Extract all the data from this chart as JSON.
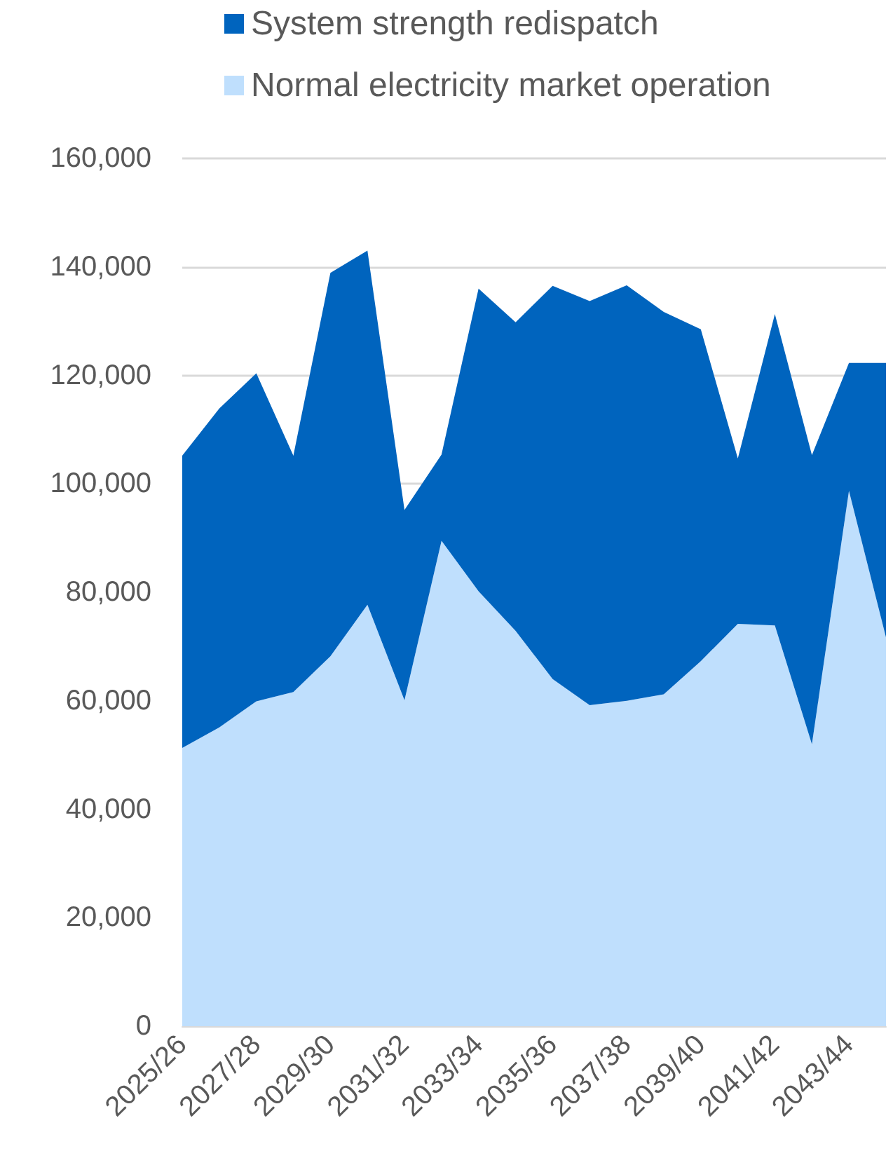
{
  "chart_data": {
    "type": "area",
    "stacked": true,
    "categories": [
      "2025/26",
      null,
      "2027/28",
      null,
      "2029/30",
      null,
      "2031/32",
      null,
      "2033/34",
      null,
      "2035/36",
      null,
      "2037/38",
      null,
      "2039/40",
      null,
      "2041/42",
      null,
      "2043/44",
      null
    ],
    "series": [
      {
        "name": "Normal electricity market operation",
        "color": "#bfdffd",
        "values": [
          51300,
          55100,
          59900,
          61600,
          68200,
          77700,
          60100,
          89500,
          80200,
          72900,
          64000,
          59200,
          60000,
          61200,
          67300,
          74200,
          73900,
          52000,
          98700,
          71700
        ]
      },
      {
        "name": "System strength redispatch",
        "color": "#0064be",
        "values": [
          53900,
          58800,
          60500,
          43600,
          70700,
          65300,
          35100,
          15900,
          55800,
          56900,
          72500,
          74500,
          76600,
          70500,
          61200,
          30500,
          57400,
          53300,
          23600,
          50600
        ]
      }
    ],
    "ylim": [
      0,
      160000
    ],
    "yticks": [
      0,
      {
        "value": 20000,
        "label": "20,000"
      },
      {
        "value": 40000,
        "label": "40,000"
      },
      {
        "value": 60000,
        "label": "60,000"
      },
      {
        "value": 80000,
        "label": "80,000"
      },
      {
        "value": 100000,
        "label": "100,000"
      },
      {
        "value": 120000,
        "label": "120,000"
      },
      {
        "value": 140000,
        "label": "140,000"
      },
      {
        "value": 160000,
        "label": "160,000"
      }
    ],
    "grid": "y",
    "legend": "top"
  }
}
